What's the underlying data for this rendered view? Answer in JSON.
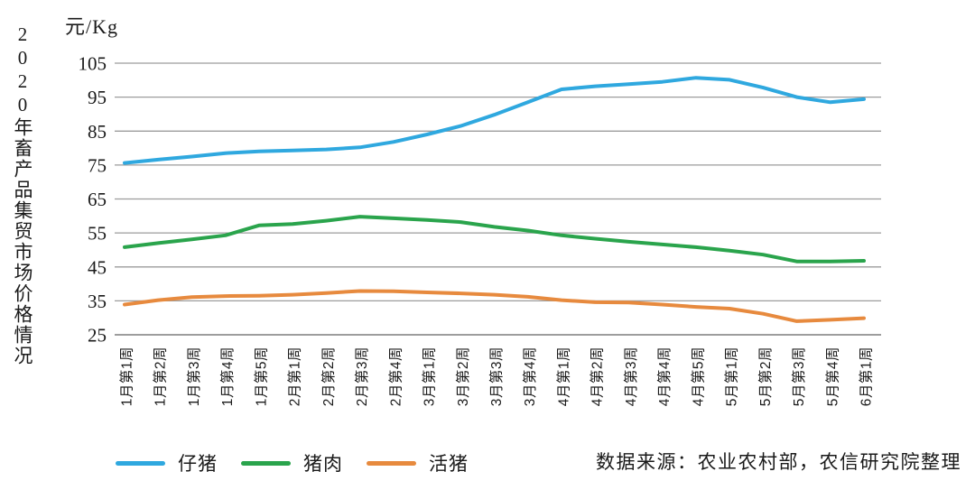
{
  "side_title": "2020年畜产品集贸市场价格情况",
  "unit_label": "元/Kg",
  "source_note": "数据来源：农业农村部，农信研究院整理",
  "legend": [
    {
      "name": "仔猪",
      "color": "#2FA8DF"
    },
    {
      "name": "猪肉",
      "color": "#2AA44C"
    },
    {
      "name": "活猪",
      "color": "#E78A3E"
    }
  ],
  "colors": {
    "gridline": "#9C9C9C",
    "axis": "#7D7D7D",
    "text": "#1A1A1A",
    "background": "#FFFFFF"
  },
  "chart_data": {
    "type": "line",
    "title": "2020年畜产品集贸市场价格情况",
    "ylabel": "元/Kg",
    "xlabel": "",
    "ylim": [
      25,
      105
    ],
    "yticks": [
      25,
      35,
      45,
      55,
      65,
      75,
      85,
      95,
      105
    ],
    "grid": true,
    "legend_position": "bottom-left",
    "categories": [
      "1月第1周",
      "1月第2周",
      "1月第3周",
      "1月第4周",
      "1月第5周",
      "2月第1周",
      "2月第2周",
      "2月第3周",
      "2月第4周",
      "3月第1周",
      "3月第2周",
      "3月第3周",
      "3月第4周",
      "4月第1周",
      "4月第2周",
      "4月第3周",
      "4月第4周",
      "4月第5周",
      "5月第1周",
      "5月第2周",
      "5月第3周",
      "5月第4周",
      "6月第1周"
    ],
    "series": [
      {
        "name": "仔猪",
        "color": "#2FA8DF",
        "values": [
          75.6,
          76.6,
          77.5,
          78.5,
          79.0,
          79.3,
          79.6,
          80.2,
          81.8,
          84.0,
          86.5,
          89.8,
          93.5,
          97.3,
          98.2,
          98.8,
          99.5,
          100.7,
          100.1,
          97.8,
          95.0,
          93.5,
          94.4
        ]
      },
      {
        "name": "猪肉",
        "color": "#2AA44C",
        "values": [
          50.8,
          52.0,
          53.1,
          54.3,
          57.2,
          57.6,
          58.6,
          59.8,
          59.3,
          58.8,
          58.2,
          56.8,
          55.7,
          54.3,
          53.3,
          52.4,
          51.6,
          50.8,
          49.8,
          48.6,
          46.6,
          46.6,
          46.8
        ]
      },
      {
        "name": "活猪",
        "color": "#E78A3E",
        "values": [
          33.9,
          35.2,
          36.1,
          36.4,
          36.5,
          36.8,
          37.3,
          37.9,
          37.8,
          37.5,
          37.2,
          36.8,
          36.2,
          35.2,
          34.6,
          34.5,
          33.9,
          33.2,
          32.7,
          31.2,
          29.0,
          29.4,
          29.9
        ]
      }
    ]
  }
}
